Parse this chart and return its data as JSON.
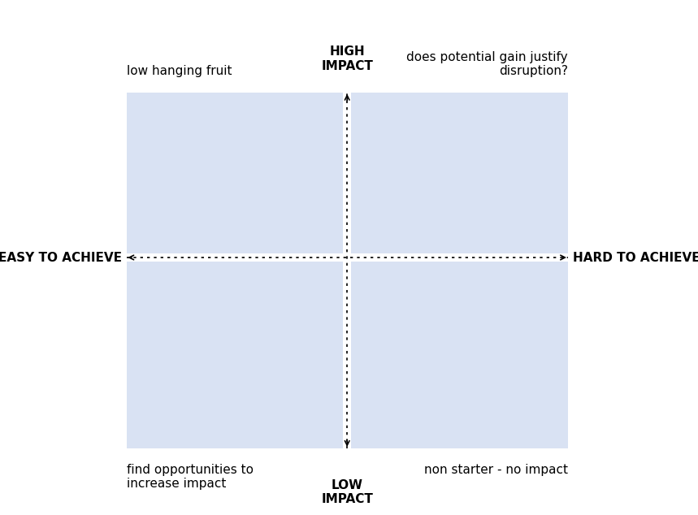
{
  "bg_color": "#ffffff",
  "quadrant_color": "#d9e2f3",
  "axis_color": "#000000",
  "text_color": "#000000",
  "title_top": "HIGH\nIMPACT",
  "title_bottom": "LOW\nIMPACT",
  "title_left": "EASY TO ACHIEVE",
  "title_right": "HARD TO ACHIEVE",
  "label_top_left": "low hanging fruit",
  "label_top_right": "does potential gain justify\ndisruption?",
  "label_bottom_left": "find opportunities to\nincrease impact",
  "label_bottom_right": "non starter - no impact",
  "font_size_axis_labels": 11,
  "font_size_quadrant_labels": 11,
  "font_size_corner_labels": 11
}
